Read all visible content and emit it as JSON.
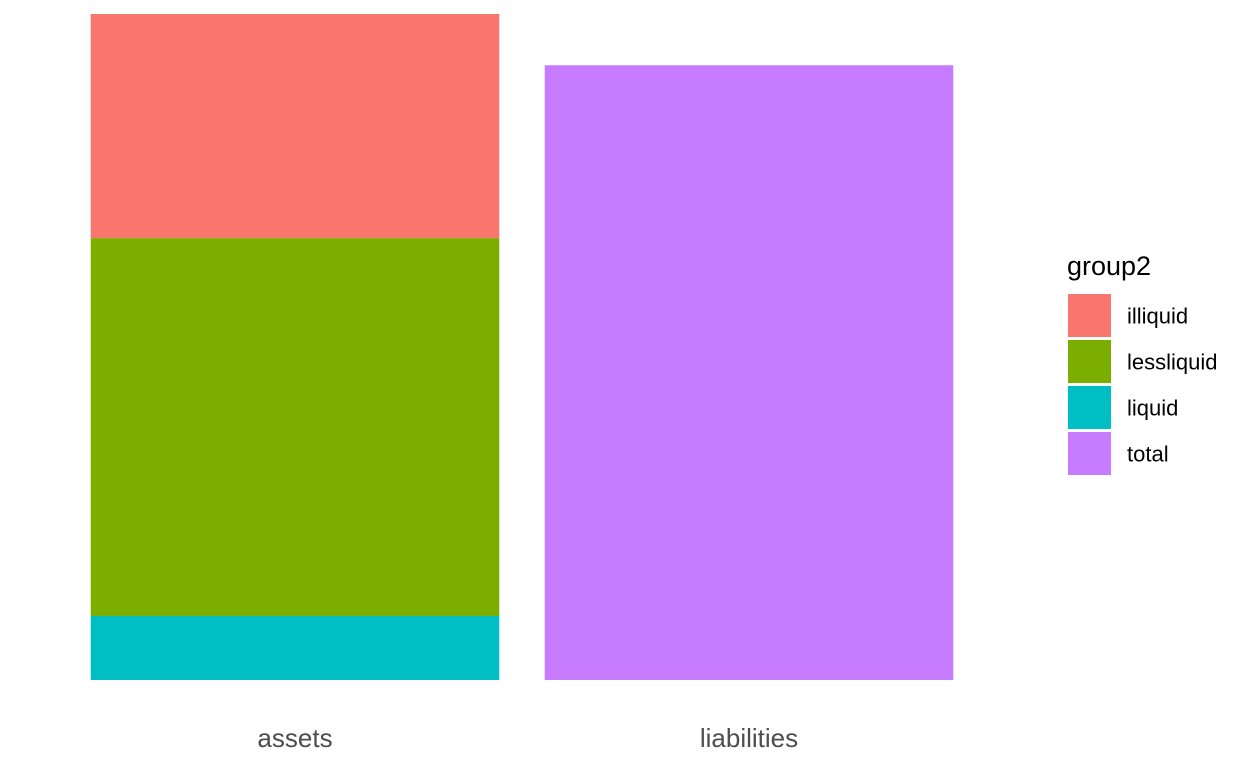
{
  "chart_data": {
    "type": "bar",
    "stacked": true,
    "categories": [
      "assets",
      "liabilities"
    ],
    "series": [
      {
        "name": "illiquid",
        "color": "#F8766D",
        "values": [
          3.5,
          0
        ]
      },
      {
        "name": "lessliquid",
        "color": "#7CAE00",
        "values": [
          5.9,
          0
        ]
      },
      {
        "name": "liquid",
        "color": "#00BFC4",
        "values": [
          1.0,
          0
        ]
      },
      {
        "name": "total",
        "color": "#C77CFF",
        "values": [
          0,
          9.6
        ]
      }
    ],
    "stack_order": [
      "liquid",
      "lessliquid",
      "illiquid",
      "total"
    ],
    "ylim": [
      0,
      10.4
    ],
    "title": "",
    "xlabel": "",
    "ylabel": "",
    "grid": false,
    "y_axis_shown": false,
    "legend": {
      "title": "group2",
      "position": "right"
    }
  }
}
